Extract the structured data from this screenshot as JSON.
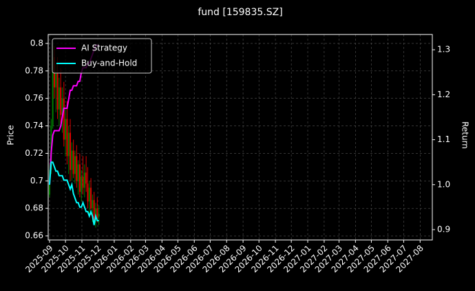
{
  "chart_data": {
    "type": "candlestick",
    "title": "fund [159835.SZ]",
    "y_label": "Price",
    "y2_label": "Return",
    "x": [
      0,
      3,
      6,
      9,
      12,
      15,
      18,
      21,
      24,
      27,
      30,
      33,
      36,
      39,
      42,
      45,
      48,
      51,
      54,
      57,
      60,
      63,
      66,
      69,
      72,
      75,
      78,
      81,
      84,
      87,
      90,
      93
    ],
    "open": [
      0.69,
      0.708,
      0.74,
      0.79,
      0.768,
      0.778,
      0.752,
      0.768,
      0.748,
      0.76,
      0.73,
      0.745,
      0.718,
      0.735,
      0.708,
      0.722,
      0.705,
      0.718,
      0.7,
      0.712,
      0.692,
      0.703,
      0.695,
      0.706,
      0.698,
      0.685,
      0.695,
      0.68,
      0.686,
      0.672,
      0.68,
      0.674
    ],
    "high": [
      0.712,
      0.745,
      0.8,
      0.798,
      0.785,
      0.79,
      0.775,
      0.782,
      0.768,
      0.772,
      0.752,
      0.758,
      0.74,
      0.745,
      0.728,
      0.73,
      0.722,
      0.726,
      0.715,
      0.72,
      0.708,
      0.718,
      0.712,
      0.718,
      0.71,
      0.7,
      0.702,
      0.69,
      0.692,
      0.684,
      0.688,
      0.682
    ],
    "low": [
      0.688,
      0.705,
      0.738,
      0.76,
      0.75,
      0.745,
      0.74,
      0.742,
      0.735,
      0.725,
      0.718,
      0.712,
      0.705,
      0.7,
      0.7,
      0.702,
      0.698,
      0.695,
      0.69,
      0.688,
      0.685,
      0.69,
      0.688,
      0.692,
      0.68,
      0.676,
      0.675,
      0.67,
      0.668,
      0.666,
      0.67,
      0.668
    ],
    "close": [
      0.708,
      0.74,
      0.79,
      0.768,
      0.778,
      0.752,
      0.768,
      0.748,
      0.76,
      0.73,
      0.745,
      0.718,
      0.735,
      0.708,
      0.722,
      0.705,
      0.718,
      0.7,
      0.712,
      0.692,
      0.703,
      0.695,
      0.706,
      0.698,
      0.685,
      0.695,
      0.68,
      0.686,
      0.672,
      0.68,
      0.674,
      0.676
    ],
    "up_color": "#008000",
    "down_color": "#e00000",
    "series": [
      {
        "name": "AI Strategy",
        "color": "#ff00ff",
        "axis": "y2",
        "values": [
          1.0,
          1.07,
          1.11,
          1.12,
          1.12,
          1.12,
          1.12,
          1.13,
          1.15,
          1.17,
          1.17,
          1.17,
          1.19,
          1.21,
          1.21,
          1.22,
          1.22,
          1.22,
          1.23,
          1.23,
          1.25,
          1.26,
          1.26,
          1.26,
          1.27,
          1.27,
          1.28,
          1.29,
          1.3,
          1.31,
          1.31,
          1.31
        ]
      },
      {
        "name": "Buy-and-Hold",
        "color": "#00ffff",
        "axis": "y2",
        "values": [
          1.0,
          1.05,
          1.05,
          1.04,
          1.03,
          1.03,
          1.02,
          1.02,
          1.02,
          1.01,
          1.01,
          1.01,
          1.0,
          0.99,
          1.0,
          0.98,
          0.97,
          0.96,
          0.96,
          0.95,
          0.95,
          0.96,
          0.95,
          0.94,
          0.94,
          0.93,
          0.94,
          0.93,
          0.91,
          0.93,
          0.92,
          0.92
        ]
      }
    ],
    "xlim": [
      -2.6,
      722
    ],
    "xticks": [
      {
        "value": 0,
        "label": "2025-09"
      },
      {
        "value": 30,
        "label": "2025-10"
      },
      {
        "value": 61,
        "label": "2025-11"
      },
      {
        "value": 91,
        "label": "2025-12"
      },
      {
        "value": 122,
        "label": "2026-01"
      },
      {
        "value": 153,
        "label": "2026-02"
      },
      {
        "value": 181,
        "label": "2026-03"
      },
      {
        "value": 212,
        "label": "2026-04"
      },
      {
        "value": 242,
        "label": "2026-05"
      },
      {
        "value": 273,
        "label": "2026-06"
      },
      {
        "value": 303,
        "label": "2026-07"
      },
      {
        "value": 334,
        "label": "2026-08"
      },
      {
        "value": 365,
        "label": "2026-09"
      },
      {
        "value": 395,
        "label": "2026-10"
      },
      {
        "value": 426,
        "label": "2026-11"
      },
      {
        "value": 456,
        "label": "2026-12"
      },
      {
        "value": 487,
        "label": "2027-01"
      },
      {
        "value": 518,
        "label": "2027-02"
      },
      {
        "value": 546,
        "label": "2027-03"
      },
      {
        "value": 577,
        "label": "2027-04"
      },
      {
        "value": 607,
        "label": "2027-05"
      },
      {
        "value": 638,
        "label": "2027-06"
      },
      {
        "value": 668,
        "label": "2027-07"
      },
      {
        "value": 699,
        "label": "2027-08"
      }
    ],
    "ylim": [
      0.657,
      0.8065
    ],
    "yticks": [
      0.66,
      0.68,
      0.7,
      0.72,
      0.74,
      0.76,
      0.78,
      0.8
    ],
    "y2lim": [
      0.877,
      1.334
    ],
    "y2ticks": [
      0.9,
      {
        "value": 1,
        "label": "1.0"
      },
      1.1,
      1.2,
      1.3
    ],
    "grid": true,
    "legend": "upper left"
  }
}
